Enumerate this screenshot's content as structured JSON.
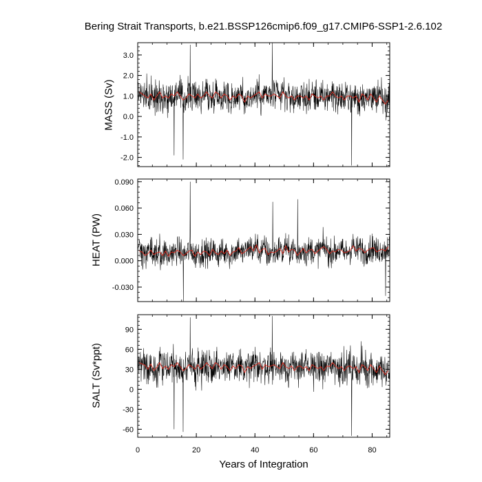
{
  "chart_data": {
    "type": "line",
    "title": "Bering Strait Transports, b.e21.BSSP126cmip6.f09_g17.CMIP6-SSP1-2.6.102",
    "xlabel": "Years of Integration",
    "xlim": [
      0,
      86
    ],
    "xticks": [
      0,
      20,
      40,
      60,
      80
    ],
    "colors": {
      "monthly": "#000000",
      "annual": "#e0281c"
    },
    "panels": [
      {
        "ylabel": "MASS (Sv)",
        "ylim": [
          -2.45,
          3.6
        ],
        "yticks": [
          -2.0,
          -1.0,
          0.0,
          1.0,
          2.0,
          3.0
        ],
        "yticklabels": [
          "-2.0",
          "-1.0",
          "0.0",
          "1.0",
          "2.0",
          "3.0"
        ],
        "annual": [
          1.2,
          1.1,
          1.0,
          0.9,
          1.1,
          0.8,
          1.0,
          1.2,
          0.9,
          1.0,
          0.9,
          1.1,
          1.0,
          1.2,
          1.0,
          0.8,
          0.9,
          1.1,
          1.0,
          0.9,
          1.1,
          0.9,
          1.0,
          1.2,
          1.0,
          0.9,
          1.2,
          1.1,
          0.9,
          1.1,
          1.0,
          0.8,
          1.0,
          0.9,
          1.1,
          1.0,
          0.7,
          1.0,
          0.9,
          1.0,
          1.1,
          1.2,
          0.9,
          1.1,
          1.0,
          1.0,
          1.1,
          1.0,
          0.9,
          1.2,
          1.0,
          0.9,
          1.0,
          0.8,
          1.0,
          1.0,
          0.9,
          1.0,
          0.8,
          1.1,
          1.0,
          0.9,
          1.0,
          0.8,
          1.0,
          1.0,
          1.2,
          1.0,
          0.9,
          1.0,
          0.8,
          1.0,
          1.0,
          0.9,
          1.0,
          0.7,
          1.1,
          1.0,
          0.8,
          1.1,
          0.9,
          0.7,
          1.0,
          0.8,
          0.6,
          0.8
        ],
        "monthly_mean": 1.0,
        "monthly_spread": 0.55,
        "monthly_extremes": [
          [
            17.9,
            3.5
          ],
          [
            45.9,
            3.6
          ],
          [
            73.0,
            -2.4
          ],
          [
            15.5,
            -2.1
          ],
          [
            12.4,
            -1.9
          ]
        ]
      },
      {
        "ylabel": "HEAT (PW)",
        "ylim": [
          -0.0465,
          0.093
        ],
        "yticks": [
          -0.03,
          0.0,
          0.03,
          0.06,
          0.09
        ],
        "yticklabels": [
          "-0.030",
          "0.000",
          "0.030",
          "0.060",
          "0.090"
        ],
        "annual": [
          0.011,
          0.01,
          0.006,
          0.008,
          0.012,
          0.007,
          0.009,
          0.01,
          0.006,
          0.011,
          0.005,
          0.01,
          0.009,
          0.012,
          0.01,
          0.006,
          0.008,
          0.011,
          0.012,
          0.005,
          0.01,
          0.007,
          0.011,
          0.01,
          0.006,
          0.013,
          0.009,
          0.007,
          0.011,
          0.008,
          0.012,
          0.006,
          0.01,
          0.011,
          0.015,
          0.008,
          0.01,
          0.013,
          0.016,
          0.011,
          0.018,
          0.009,
          0.013,
          0.014,
          0.007,
          0.01,
          0.009,
          0.011,
          0.014,
          0.008,
          0.017,
          0.01,
          0.013,
          0.012,
          0.006,
          0.01,
          0.014,
          0.009,
          0.012,
          0.013,
          0.008,
          0.011,
          0.014,
          0.016,
          0.013,
          0.008,
          0.011,
          0.01,
          0.013,
          0.012,
          0.009,
          0.01,
          0.012,
          0.017,
          0.011,
          0.014,
          0.013,
          0.009,
          0.012,
          0.014,
          0.015,
          0.01,
          0.012,
          0.013,
          0.011,
          0.016
        ],
        "monthly_mean": 0.011,
        "monthly_spread": 0.011,
        "monthly_extremes": [
          [
            17.9,
            0.09
          ],
          [
            15.6,
            -0.046
          ],
          [
            54.6,
            0.07
          ],
          [
            46.1,
            0.067
          ],
          [
            84.6,
            -0.04
          ]
        ]
      },
      {
        "ylabel": "SALT (Sv*ppt)",
        "ylim": [
          -72,
          112
        ],
        "yticks": [
          -60,
          -30,
          0,
          30,
          60,
          90
        ],
        "yticklabels": [
          "-60",
          "-30",
          "0",
          "30",
          "60",
          "90"
        ],
        "annual": [
          40,
          38,
          36,
          30,
          38,
          28,
          33,
          40,
          31,
          35,
          30,
          37,
          34,
          40,
          34,
          28,
          31,
          37,
          34,
          30,
          37,
          30,
          34,
          40,
          35,
          31,
          40,
          37,
          30,
          37,
          34,
          28,
          35,
          31,
          37,
          35,
          25,
          34,
          31,
          35,
          37,
          40,
          30,
          37,
          34,
          35,
          37,
          34,
          31,
          40,
          34,
          31,
          35,
          28,
          34,
          35,
          31,
          34,
          28,
          37,
          34,
          31,
          34,
          28,
          35,
          34,
          40,
          35,
          31,
          34,
          28,
          34,
          35,
          31,
          34,
          25,
          37,
          34,
          28,
          37,
          31,
          25,
          35,
          28,
          22,
          28
        ],
        "monthly_mean": 33,
        "monthly_spread": 18,
        "monthly_extremes": [
          [
            17.9,
            108
          ],
          [
            45.9,
            110
          ],
          [
            73.0,
            -70
          ],
          [
            15.5,
            -64
          ],
          [
            12.4,
            -60
          ]
        ]
      }
    ]
  }
}
